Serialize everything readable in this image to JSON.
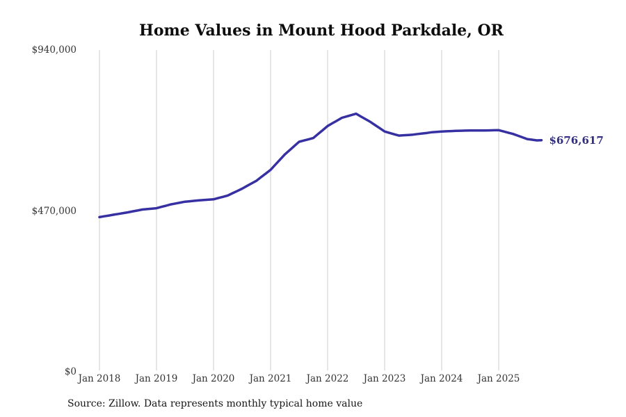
{
  "header": {
    "title": "Home Values in Mount Hood Parkdale, OR"
  },
  "footer": {
    "source_note": "Source: Zillow. Data represents monthly typical home value"
  },
  "chart_data": {
    "type": "line",
    "title": "Home Values in Mount Hood Parkdale, OR",
    "x_start": "2018-01",
    "x_interval": "monthly",
    "x_end": "2025-10",
    "ylim": [
      0,
      940000
    ],
    "grid": "vertical-only",
    "legend": "none",
    "colors": {
      "line": "#3730a3",
      "end_label": "#312e81",
      "gridline": "#cccccc",
      "tick_text": "#333333"
    },
    "y_ticks": [
      {
        "label": "$0",
        "value": 0
      },
      {
        "label": "$470,000",
        "value": 470000
      },
      {
        "label": "$940,000",
        "value": 940000
      }
    ],
    "x_ticks": [
      {
        "label": "Jan 2018",
        "month_index": 0
      },
      {
        "label": "Jan 2019",
        "month_index": 12
      },
      {
        "label": "Jan 2020",
        "month_index": 24
      },
      {
        "label": "Jan 2021",
        "month_index": 36
      },
      {
        "label": "Jan 2022",
        "month_index": 48
      },
      {
        "label": "Jan 2023",
        "month_index": 60
      },
      {
        "label": "Jan 2024",
        "month_index": 72
      },
      {
        "label": "Jan 2025",
        "month_index": 84
      }
    ],
    "series": [
      {
        "name": "Monthly typical home value",
        "values": [
          452000,
          454300,
          456700,
          459000,
          461300,
          463700,
          466000,
          468700,
          471300,
          474000,
          475300,
          476700,
          478000,
          481700,
          485300,
          489000,
          491700,
          494300,
          497000,
          498300,
          499700,
          501000,
          502000,
          503000,
          504000,
          507700,
          511300,
          515000,
          521700,
          528300,
          535000,
          542700,
          550300,
          558000,
          568700,
          579300,
          590000,
          605000,
          620000,
          635000,
          647300,
          659700,
          672000,
          675700,
          679300,
          683000,
          694700,
          706300,
          718000,
          726000,
          734000,
          742000,
          746000,
          750000,
          754000,
          746000,
          738000,
          730000,
          720700,
          711300,
          702000,
          698000,
          694000,
          690000,
          691000,
          692000,
          693000,
          694700,
          696300,
          698000,
          700000,
          701000,
          702000,
          702700,
          703300,
          704000,
          704300,
          704700,
          705000,
          705000,
          705000,
          705000,
          705300,
          705700,
          706000,
          702300,
          698700,
          695000,
          690000,
          685000,
          680000,
          678000,
          676000,
          676617
        ]
      }
    ],
    "end_label": "$676,617",
    "end_value": 676617
  }
}
